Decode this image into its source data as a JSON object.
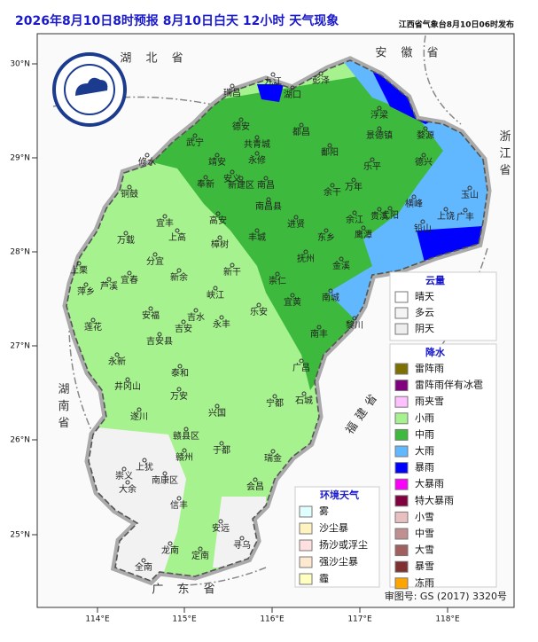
{
  "header": {
    "title": "2026年8月10日8时预报 8月10日白天 12小时  天气现象",
    "publisher": "江西省气象台8月10日06时发布"
  },
  "axes": {
    "lon_ticks": [
      "114°E",
      "115°E",
      "116°E",
      "117°E",
      "118°E"
    ],
    "lat_ticks": [
      "30°N",
      "29°N",
      "28°N",
      "27°N",
      "26°N",
      "25°N"
    ]
  },
  "provinces": [
    "湖 北 省",
    "安 徽 省",
    "浙江省",
    "湖南省",
    "福建省",
    "广 东 省"
  ],
  "cities": [
    "瑞昌",
    "九江",
    "湖口",
    "彭泽",
    "浮梁",
    "景德镇",
    "婺源",
    "德安",
    "共青城",
    "都昌",
    "修水",
    "武宁",
    "永修",
    "鄱阳",
    "乐平",
    "德兴",
    "玉山",
    "广丰",
    "上饶",
    "铅山",
    "横峰",
    "弋阳",
    "贵溪",
    "鹰潭",
    "余江",
    "万年",
    "余干",
    "安义",
    "靖安",
    "奉新",
    "新建区",
    "南昌",
    "南昌县",
    "进贤",
    "铜鼓",
    "宜丰",
    "高安",
    "上高",
    "万载",
    "丰城",
    "东乡",
    "抚州",
    "金溪",
    "樟树",
    "新干",
    "分宜",
    "新余",
    "宜春",
    "萍乡",
    "芦溪",
    "上栗",
    "峡江",
    "崇仁",
    "宜黄",
    "南城",
    "黎川",
    "南丰",
    "广昌",
    "乐安",
    "永丰",
    "吉水",
    "安福",
    "莲花",
    "吉安",
    "吉安县",
    "永新",
    "泰和",
    "井冈山",
    "万安",
    "遂川",
    "兴国",
    "宁都",
    "石城",
    "瑞金",
    "于都",
    "赣州",
    "赣县区",
    "南康区",
    "上犹",
    "崇义",
    "大余",
    "信丰",
    "会昌",
    "安远",
    "寻乌",
    "全南",
    "龙南",
    "定南"
  ],
  "legend": {
    "cloud": {
      "title": "云量",
      "items": [
        "晴天",
        "多云",
        "阴天"
      ]
    },
    "precip": {
      "title": "降水",
      "items": [
        "雷阵雨",
        "雷阵雨伴有冰雹",
        "雨夹雪",
        "小雨",
        "中雨",
        "大雨",
        "暴雨",
        "大暴雨",
        "特大暴雨",
        "小雪",
        "中雪",
        "大雪",
        "暴雪",
        "冻雨"
      ]
    },
    "env": {
      "title": "环境天气",
      "items": [
        "雾",
        "沙尘暴",
        "扬沙或浮尘",
        "强沙尘暴",
        "霾"
      ]
    }
  },
  "approval": "审图号: GS (2017) 3320号"
}
